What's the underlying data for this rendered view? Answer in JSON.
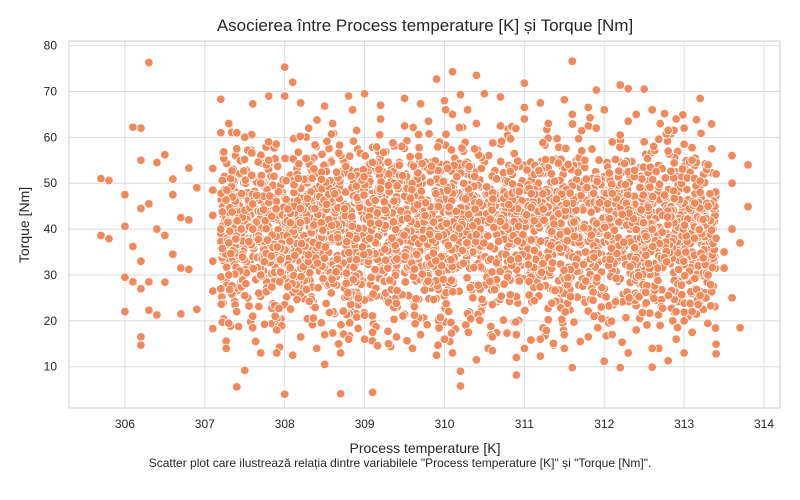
{
  "chart_data": {
    "type": "scatter",
    "title": "Asocierea între Process temperature [K] și Torque [Nm]",
    "xlabel": "Process temperature [K]",
    "ylabel": "Torque [Nm]",
    "xlim": [
      305.3,
      314.2
    ],
    "ylim": [
      1,
      81
    ],
    "xticks": [
      306,
      307,
      308,
      309,
      310,
      311,
      312,
      313,
      314
    ],
    "yticks": [
      10,
      20,
      30,
      40,
      50,
      60,
      70,
      80
    ],
    "grid": true,
    "marker_color": "#F08A5D",
    "marker_edge_color": "#ffffff",
    "series": [
      {
        "points": [
          [
            306.3,
            76.3
          ],
          [
            311.6,
            76.6
          ],
          [
            308.0,
            75.3
          ],
          [
            310.4,
            73.5
          ],
          [
            309.9,
            72.7
          ],
          [
            311.0,
            71.8
          ],
          [
            308.1,
            72.0
          ],
          [
            312.2,
            71.4
          ],
          [
            312.3,
            70.6
          ],
          [
            312.5,
            70.5
          ],
          [
            310.1,
            74.3
          ],
          [
            311.9,
            70.3
          ],
          [
            313.2,
            68.5
          ],
          [
            307.2,
            68.3
          ],
          [
            306.2,
            62.0
          ],
          [
            306.1,
            62.2
          ],
          [
            306.2,
            55.0
          ],
          [
            306.4,
            54.5
          ],
          [
            306.5,
            56.2
          ],
          [
            306.8,
            53.3
          ],
          [
            305.7,
            51.0
          ],
          [
            305.8,
            50.6
          ],
          [
            306.6,
            50.9
          ],
          [
            306.9,
            49.0
          ],
          [
            306.0,
            47.5
          ],
          [
            306.6,
            47.5
          ],
          [
            306.2,
            44.5
          ],
          [
            306.3,
            45.5
          ],
          [
            306.7,
            42.5
          ],
          [
            306.8,
            42.0
          ],
          [
            306.4,
            40.0
          ],
          [
            306.0,
            40.6
          ],
          [
            305.7,
            38.6
          ],
          [
            305.8,
            37.9
          ],
          [
            306.1,
            36.2
          ],
          [
            306.5,
            38.6
          ],
          [
            306.6,
            34.5
          ],
          [
            306.2,
            33.0
          ],
          [
            306.0,
            29.5
          ],
          [
            306.1,
            28.5
          ],
          [
            306.3,
            28.5
          ],
          [
            306.5,
            28.4
          ],
          [
            306.7,
            31.5
          ],
          [
            306.2,
            27.0
          ],
          [
            306.0,
            22.0
          ],
          [
            306.3,
            22.3
          ],
          [
            306.4,
            21.3
          ],
          [
            306.7,
            21.5
          ],
          [
            306.2,
            16.5
          ],
          [
            306.2,
            14.7
          ],
          [
            306.9,
            22.5
          ],
          [
            306.8,
            31.2
          ],
          [
            307.1,
            26.5
          ],
          [
            307.1,
            18.3
          ],
          [
            307.1,
            48.5
          ],
          [
            307.4,
            5.6
          ],
          [
            307.5,
            9.2
          ],
          [
            308.0,
            4.0
          ],
          [
            308.7,
            4.1
          ],
          [
            309.1,
            4.4
          ],
          [
            310.2,
            5.8
          ],
          [
            310.9,
            8.2
          ],
          [
            310.2,
            9.0
          ],
          [
            311.6,
            9.8
          ],
          [
            312.2,
            9.8
          ],
          [
            312.6,
            9.9
          ],
          [
            312.8,
            11.3
          ],
          [
            313.0,
            13.0
          ],
          [
            313.4,
            12.8
          ],
          [
            313.4,
            14.9
          ],
          [
            313.7,
            18.5
          ],
          [
            313.8,
            54.0
          ],
          [
            313.8,
            44.9
          ],
          [
            313.7,
            37.0
          ],
          [
            313.5,
            35.0
          ],
          [
            313.6,
            50.0
          ],
          [
            313.4,
            52.0
          ],
          [
            313.6,
            56.0
          ],
          [
            313.3,
            54.0
          ],
          [
            313.5,
            31.5
          ],
          [
            313.6,
            40.0
          ],
          [
            313.6,
            25.0
          ],
          [
            313.2,
            25.5
          ],
          [
            313.2,
            48.0
          ],
          [
            313.0,
            58.5
          ],
          [
            312.9,
            64.0
          ],
          [
            313.0,
            62.0
          ],
          [
            312.7,
            63.0
          ],
          [
            312.8,
            61.5
          ],
          [
            312.6,
            66.0
          ],
          [
            312.4,
            65.0
          ],
          [
            312.3,
            63.5
          ],
          [
            312.0,
            66.0
          ],
          [
            311.8,
            66.5
          ],
          [
            311.5,
            68.2
          ],
          [
            311.2,
            67.5
          ],
          [
            311.0,
            66.5
          ],
          [
            310.7,
            68.8
          ],
          [
            310.5,
            69.5
          ],
          [
            310.2,
            69.3
          ],
          [
            310.0,
            68.0
          ],
          [
            309.7,
            67.3
          ],
          [
            309.5,
            68.5
          ],
          [
            309.2,
            67.0
          ],
          [
            309.0,
            69.5
          ],
          [
            308.8,
            69.0
          ],
          [
            308.5,
            66.8
          ],
          [
            308.2,
            67.5
          ],
          [
            308.0,
            69.0
          ],
          [
            307.8,
            69.0
          ],
          [
            307.6,
            67.3
          ],
          [
            307.3,
            63.0
          ],
          [
            307.2,
            61.0
          ],
          [
            307.5,
            60.0
          ],
          [
            307.4,
            57.5
          ],
          [
            307.1,
            53.2
          ],
          [
            307.1,
            43.0
          ],
          [
            307.2,
            40.0
          ],
          [
            307.3,
            37.0
          ],
          [
            307.1,
            33.0
          ],
          [
            307.3,
            30.0
          ],
          [
            307.2,
            27.0
          ],
          [
            307.5,
            25.5
          ],
          [
            307.4,
            22.0
          ],
          [
            307.3,
            19.5
          ],
          [
            307.6,
            18.5
          ],
          [
            307.7,
            13.0
          ],
          [
            307.9,
            13.0
          ],
          [
            308.1,
            12.5
          ],
          [
            308.4,
            14.0
          ],
          [
            308.5,
            10.5
          ],
          [
            308.7,
            13.0
          ],
          [
            309.0,
            16.0
          ],
          [
            309.3,
            15.0
          ],
          [
            309.6,
            14.0
          ],
          [
            309.9,
            12.5
          ],
          [
            310.1,
            13.0
          ],
          [
            310.4,
            11.5
          ],
          [
            310.6,
            13.5
          ],
          [
            310.9,
            12.0
          ],
          [
            311.2,
            12.3
          ],
          [
            311.5,
            14.0
          ],
          [
            311.7,
            15.5
          ],
          [
            312.0,
            11.2
          ],
          [
            312.3,
            13.0
          ],
          [
            312.6,
            14.0
          ],
          [
            312.9,
            16.0
          ],
          [
            313.1,
            17.5
          ],
          [
            307.4,
            61.0
          ],
          [
            307.8,
            59.0
          ],
          [
            308.3,
            62.0
          ],
          [
            308.6,
            63.0
          ],
          [
            308.9,
            61.5
          ],
          [
            309.2,
            64.0
          ],
          [
            309.5,
            62.5
          ],
          [
            309.8,
            63.5
          ],
          [
            310.1,
            65.0
          ],
          [
            310.4,
            63.0
          ],
          [
            310.7,
            62.5
          ],
          [
            311.0,
            64.0
          ],
          [
            311.3,
            63.0
          ],
          [
            311.6,
            65.0
          ],
          [
            311.9,
            62.0
          ],
          [
            312.2,
            60.5
          ],
          [
            312.5,
            59.0
          ],
          [
            312.8,
            57.0
          ],
          [
            313.1,
            55.0
          ],
          [
            313.3,
            45.0
          ],
          [
            313.4,
            38.0
          ],
          [
            313.3,
            30.0
          ],
          [
            313.1,
            22.0
          ],
          [
            313.0,
            20.0
          ],
          [
            312.7,
            19.0
          ],
          [
            312.4,
            18.0
          ],
          [
            312.1,
            17.0
          ],
          [
            311.8,
            16.5
          ],
          [
            311.5,
            17.0
          ],
          [
            311.2,
            16.0
          ],
          [
            310.9,
            17.0
          ],
          [
            310.6,
            16.5
          ],
          [
            310.3,
            17.5
          ],
          [
            310.0,
            16.0
          ],
          [
            309.7,
            17.0
          ],
          [
            309.4,
            16.5
          ],
          [
            309.1,
            17.5
          ],
          [
            308.8,
            16.0
          ],
          [
            308.5,
            17.0
          ],
          [
            308.2,
            16.5
          ],
          [
            307.9,
            18.0
          ],
          [
            307.6,
            21.0
          ],
          [
            307.7,
            30.0
          ],
          [
            307.6,
            40.0
          ],
          [
            307.7,
            50.0
          ],
          [
            307.8,
            55.0
          ]
        ]
      }
    ],
    "dense_region": {
      "x": [
        307.2,
        313.4
      ],
      "y_center": 40,
      "y_spread": 9.5
    }
  },
  "caption": "Scatter plot care ilustrează relația dintre variabilele \"Process temperature [K]\" și \"Torque [Nm]\"."
}
